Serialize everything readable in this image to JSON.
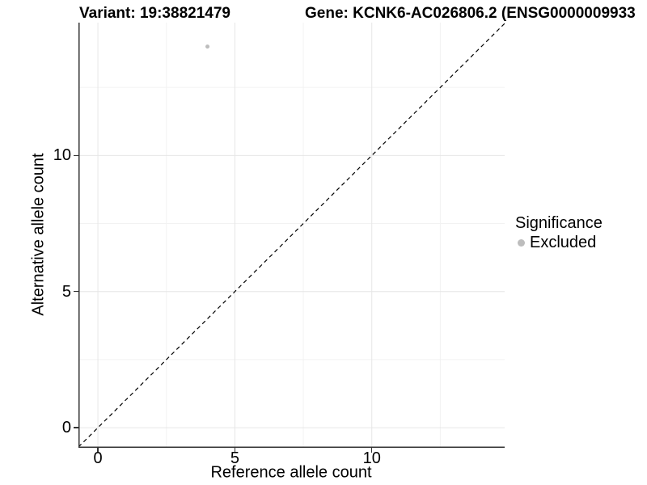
{
  "header": {
    "variant_title": "Variant: 19:38821479",
    "gene_title": "Gene: KCNK6-AC026806.2 (ENSG0000009933"
  },
  "chart_data": {
    "type": "scatter",
    "title": "Variant: 19:38821479 / Gene: KCNK6-AC026806.2 (ENSG0000009933",
    "xlabel": "Reference allele count",
    "ylabel": "Alternative allele count",
    "xlim": [
      -0.71,
      14.85
    ],
    "ylim": [
      -0.74,
      14.88
    ],
    "xticks": [
      0,
      5,
      10
    ],
    "yticks": [
      0,
      5,
      10
    ],
    "grid": {
      "x_major": [
        0,
        5,
        10
      ],
      "x_minor": [
        2.5,
        7.5,
        12.5
      ],
      "y_major": [
        0,
        5,
        10
      ],
      "y_minor": [
        2.5,
        7.5,
        12.5
      ]
    },
    "identity_line": {
      "style": "dashed",
      "slope": 1,
      "intercept": 0
    },
    "series": [
      {
        "name": "Excluded",
        "color": "#bdbdbd",
        "points": [
          {
            "x": 4,
            "y": 14
          }
        ]
      }
    ],
    "legend": {
      "title": "Significance",
      "position": "right",
      "items": [
        {
          "label": "Excluded",
          "color": "#bdbdbd"
        }
      ]
    },
    "colors": {
      "axis": "#333333",
      "grid_major": "#e6e6e6",
      "grid_minor": "#f2f2f2",
      "identity_line": "#000000",
      "background": "#ffffff"
    }
  }
}
